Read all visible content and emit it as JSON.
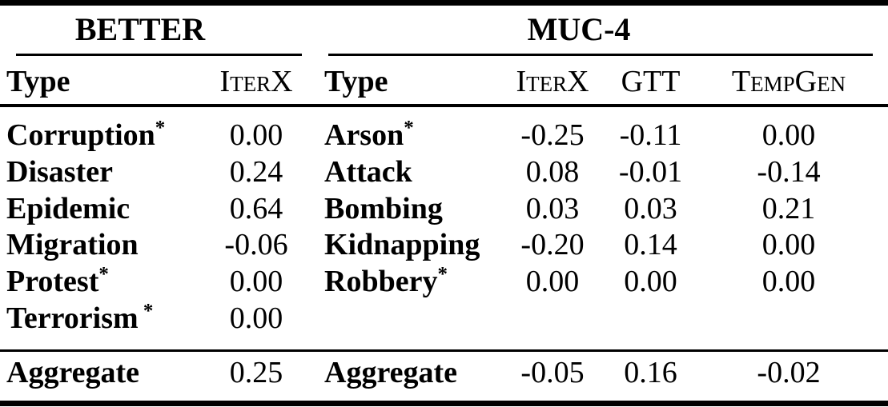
{
  "colors": {
    "text": "#000000",
    "background": "#ffffff",
    "rule": "#000000"
  },
  "tables": {
    "better": {
      "title": "BETTER",
      "headers": {
        "type": "Type",
        "cols": [
          "IterX"
        ]
      },
      "rows": [
        {
          "label": "Corruption",
          "star": "*",
          "values": [
            "0.00"
          ]
        },
        {
          "label": "Disaster",
          "star": "",
          "values": [
            "0.24"
          ]
        },
        {
          "label": "Epidemic",
          "star": "",
          "values": [
            "0.64"
          ]
        },
        {
          "label": "Migration",
          "star": "",
          "values": [
            "-0.06"
          ]
        },
        {
          "label": "Protest",
          "star": "*",
          "values": [
            "0.00"
          ]
        },
        {
          "label": "Terrorism",
          "star": " *",
          "values": [
            "0.00"
          ]
        }
      ],
      "aggregate": {
        "label": "Aggregate",
        "values": [
          "0.25"
        ]
      }
    },
    "muc4": {
      "title": "MUC-4",
      "headers": {
        "type": "Type",
        "cols": [
          "IterX",
          "GTT",
          "TempGen"
        ]
      },
      "rows": [
        {
          "label": "Arson",
          "star": "*",
          "values": [
            "-0.25",
            "-0.11",
            "0.00"
          ]
        },
        {
          "label": "Attack",
          "star": "",
          "values": [
            "0.08",
            "-0.01",
            "-0.14"
          ]
        },
        {
          "label": "Bombing",
          "star": "",
          "values": [
            "0.03",
            "0.03",
            "0.21"
          ]
        },
        {
          "label": "Kidnapping",
          "star": "",
          "values": [
            "-0.20",
            "0.14",
            "0.00"
          ]
        },
        {
          "label": "Robbery",
          "star": "*",
          "values": [
            "0.00",
            "0.00",
            "0.00"
          ]
        }
      ],
      "aggregate": {
        "label": "Aggregate",
        "values": [
          "-0.05",
          "0.16",
          "-0.02"
        ]
      }
    }
  }
}
